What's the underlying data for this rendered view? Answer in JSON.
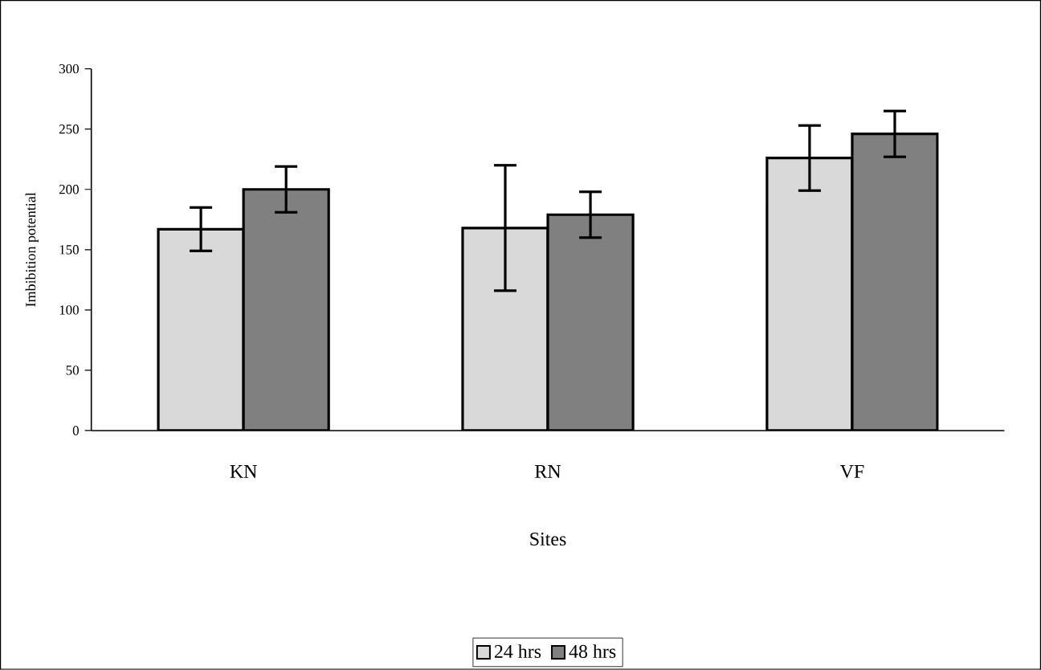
{
  "chart_data": {
    "type": "bar",
    "xlabel": "Sites",
    "ylabel": "Imbibition potential",
    "categories": [
      "KN",
      "RN",
      "VF"
    ],
    "series": [
      {
        "name": "24 hrs",
        "color": "#d9d9d9",
        "values": [
          167,
          168,
          226
        ],
        "errors": [
          18,
          52,
          27
        ]
      },
      {
        "name": "48 hrs",
        "color": "#808080",
        "values": [
          200,
          179,
          246
        ],
        "errors": [
          19,
          19,
          19
        ]
      }
    ],
    "ylim": [
      0,
      300
    ],
    "yticks": [
      0,
      50,
      100,
      150,
      200,
      250,
      300
    ],
    "grid": false,
    "legend": "bottom"
  }
}
